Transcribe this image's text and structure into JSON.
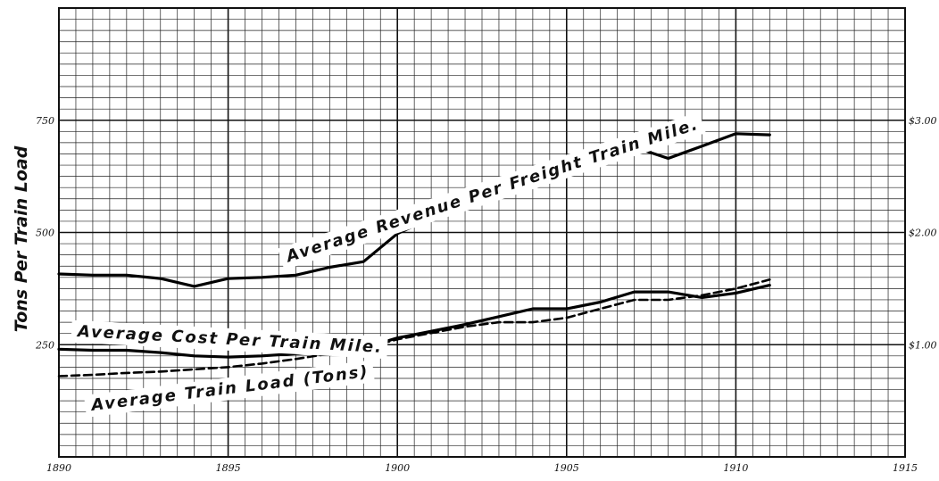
{
  "chart_data": {
    "type": "line",
    "title": "",
    "ylabel_left": "Tons Per Train Load",
    "xlabel": "",
    "x_ticks": [
      "1890",
      "1895",
      "1900",
      "1905",
      "1910",
      "1915"
    ],
    "xlim": [
      1890,
      1915
    ],
    "y_left_ticks": [
      {
        "value": 250,
        "label": "250"
      },
      {
        "value": 500,
        "label": "500"
      },
      {
        "value": 750,
        "label": "750"
      }
    ],
    "y_left_lim": [
      0,
      1000
    ],
    "y_right_ticks": [
      {
        "value": 1.0,
        "label": "$1.00"
      },
      {
        "value": 2.0,
        "label": "$2.00"
      },
      {
        "value": 3.0,
        "label": "$3.00"
      }
    ],
    "y_right_lim": [
      0,
      4
    ],
    "grid": true,
    "series": [
      {
        "name": "Average Revenue Per Freight Train Mile.",
        "axis": "right",
        "style": "solid",
        "x": [
          1890,
          1891,
          1892,
          1893,
          1894,
          1895,
          1896,
          1897,
          1898,
          1899,
          1900,
          1901,
          1902,
          1903,
          1904,
          1905,
          1906,
          1907,
          1908,
          1909,
          1910,
          1911
        ],
        "values": [
          1.63,
          1.62,
          1.62,
          1.59,
          1.52,
          1.59,
          1.6,
          1.62,
          1.69,
          1.74,
          1.99,
          2.13,
          2.25,
          2.43,
          2.42,
          2.5,
          2.6,
          2.76,
          2.66,
          2.77,
          2.88,
          2.87
        ]
      },
      {
        "name": "Average Cost Per Train Mile.",
        "axis": "right",
        "style": "solid",
        "x": [
          1890,
          1891,
          1892,
          1893,
          1894,
          1895,
          1896,
          1897,
          1898,
          1899,
          1900,
          1901,
          1902,
          1903,
          1904,
          1905,
          1906,
          1907,
          1908,
          1909,
          1910,
          1911
        ],
        "values": [
          0.96,
          0.95,
          0.95,
          0.93,
          0.9,
          0.89,
          0.9,
          0.92,
          0.94,
          0.97,
          1.06,
          1.12,
          1.18,
          1.25,
          1.32,
          1.32,
          1.38,
          1.47,
          1.47,
          1.42,
          1.46,
          1.53
        ]
      },
      {
        "name": "Average Train Load (Tons)",
        "axis": "left",
        "style": "dashed",
        "x": [
          1890,
          1891,
          1892,
          1893,
          1894,
          1895,
          1896,
          1897,
          1898,
          1899,
          1900,
          1901,
          1902,
          1903,
          1904,
          1905,
          1906,
          1907,
          1908,
          1909,
          1910,
          1911
        ],
        "values": [
          180,
          183,
          187,
          190,
          195,
          200,
          208,
          218,
          230,
          242,
          262,
          276,
          290,
          300,
          300,
          310,
          330,
          350,
          350,
          360,
          375,
          395
        ]
      }
    ]
  }
}
